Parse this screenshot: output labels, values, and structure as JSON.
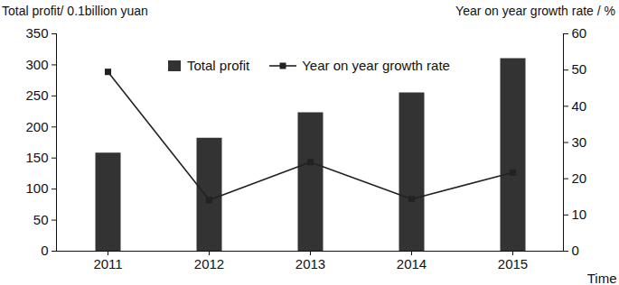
{
  "chart_data": {
    "type": "bar",
    "xlabel": "Time",
    "ylabel": "Total profit/ 0.1billion yuan",
    "y2label": "Year on year growth rate / %",
    "categories": [
      "2011",
      "2012",
      "2013",
      "2014",
      "2015"
    ],
    "series": [
      {
        "name": "Total profit",
        "type": "bar",
        "color": "#333333",
        "values": [
          158,
          182,
          223,
          255,
          310
        ]
      },
      {
        "name": "Year on year growth rate",
        "type": "line",
        "axis": "y2",
        "color": "#222222",
        "marker": "square",
        "values": [
          49.5,
          14.1,
          24.6,
          14.4,
          21.7
        ]
      }
    ],
    "ylim": [
      0,
      350
    ],
    "yticks": [
      0,
      50,
      100,
      150,
      200,
      250,
      300,
      350
    ],
    "y2lim": [
      0,
      60
    ],
    "y2ticks": [
      0,
      10,
      20,
      30,
      40,
      50,
      60
    ],
    "legend": "top"
  }
}
